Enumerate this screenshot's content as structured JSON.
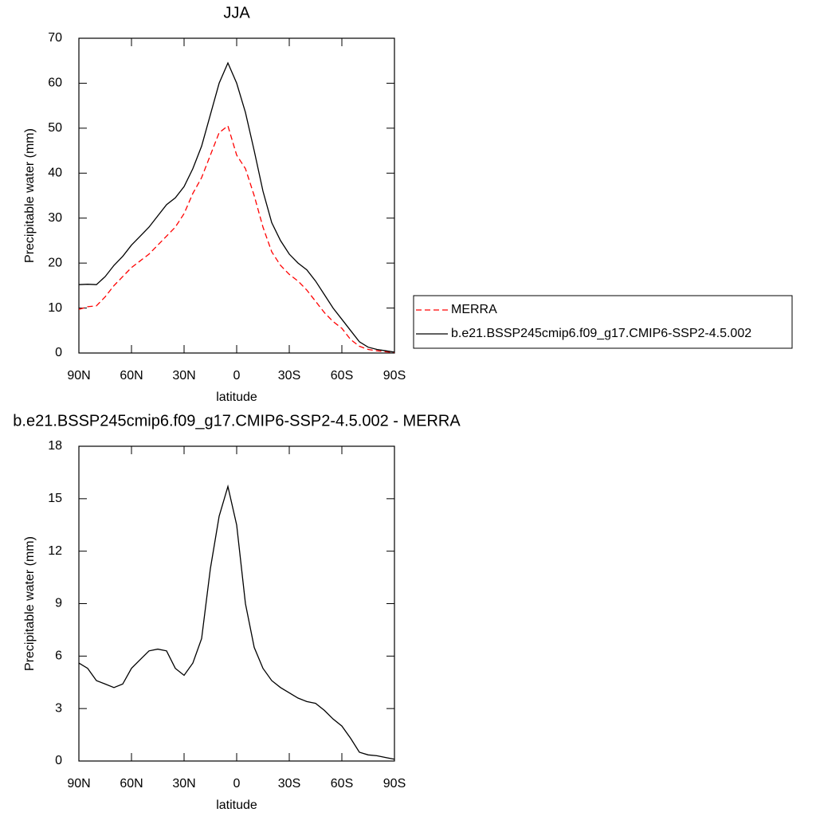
{
  "chart_data": [
    {
      "type": "line",
      "title": "JJA",
      "xlabel": "latitude",
      "ylabel": "Precipitable water (mm)",
      "x": [
        90,
        85,
        80,
        75,
        70,
        65,
        60,
        55,
        50,
        45,
        40,
        35,
        30,
        25,
        20,
        15,
        10,
        5,
        0,
        -5,
        -10,
        -15,
        -20,
        -25,
        -30,
        -35,
        -40,
        -45,
        -50,
        -55,
        -60,
        -65,
        -70,
        -75,
        -80,
        -85,
        -90
      ],
      "xlim": [
        90,
        -90
      ],
      "xticks": [
        {
          "value": 90,
          "label": "90N"
        },
        {
          "value": 60,
          "label": "60N"
        },
        {
          "value": 30,
          "label": "30N"
        },
        0,
        {
          "value": -30,
          "label": "30S"
        },
        {
          "value": -60,
          "label": "60S"
        },
        {
          "value": -90,
          "label": "90S"
        }
      ],
      "ylim": [
        0,
        70
      ],
      "yticks": [
        0,
        10,
        20,
        30,
        40,
        50,
        60,
        70
      ],
      "legend": "right",
      "series": [
        {
          "name": "MERRA",
          "color": "#ff0000",
          "line_style": "dashed",
          "values": [
            9.7,
            10.3,
            10.5,
            12.5,
            15,
            17,
            19,
            20.5,
            22,
            24,
            26,
            28,
            31,
            35.5,
            39,
            44,
            49,
            50.5,
            44,
            41,
            35,
            28,
            22.5,
            19.5,
            17.5,
            16,
            14,
            11.5,
            9,
            7,
            5.5,
            3,
            1.5,
            0.8,
            0.5,
            0.3,
            0.1
          ]
        },
        {
          "name": "b.e21.BSSP245cmip6.f09_g17.CMIP6-SSP2-4.5.002",
          "color": "#000000",
          "line_style": "solid",
          "values": [
            15.2,
            15.3,
            15.2,
            17,
            19.5,
            21.5,
            24,
            26,
            28,
            30.5,
            33,
            34.5,
            37,
            41,
            46,
            53,
            60,
            64.5,
            60,
            53.5,
            45,
            36,
            29,
            25,
            22,
            20,
            18.5,
            16,
            13,
            10,
            7.5,
            5,
            2.5,
            1.3,
            0.8,
            0.5,
            0.2
          ]
        }
      ]
    },
    {
      "type": "line",
      "title": "b.e21.BSSP245cmip6.f09_g17.CMIP6-SSP2-4.5.002 - MERRA",
      "xlabel": "latitude",
      "ylabel": "Precipitable water (mm)",
      "x": [
        90,
        85,
        80,
        75,
        70,
        65,
        60,
        55,
        50,
        45,
        40,
        35,
        30,
        25,
        20,
        15,
        10,
        5,
        0,
        -5,
        -10,
        -15,
        -20,
        -25,
        -30,
        -35,
        -40,
        -45,
        -50,
        -55,
        -60,
        -65,
        -70,
        -75,
        -80,
        -85,
        -90
      ],
      "xlim": [
        90,
        -90
      ],
      "xticks": [
        {
          "value": 90,
          "label": "90N"
        },
        {
          "value": 60,
          "label": "60N"
        },
        {
          "value": 30,
          "label": "30N"
        },
        0,
        {
          "value": -30,
          "label": "30S"
        },
        {
          "value": -60,
          "label": "60S"
        },
        {
          "value": -90,
          "label": "90S"
        }
      ],
      "ylim": [
        0,
        18
      ],
      "yticks": [
        0,
        3,
        6,
        9,
        12,
        15,
        18
      ],
      "series": [
        {
          "color": "#000000",
          "line_style": "solid",
          "values": [
            5.6,
            5.3,
            4.6,
            4.4,
            4.2,
            4.4,
            5.3,
            5.8,
            6.3,
            6.4,
            6.3,
            5.3,
            4.9,
            5.6,
            7.0,
            11,
            14,
            15.7,
            13.5,
            9,
            6.5,
            5.3,
            4.6,
            4.2,
            3.9,
            3.6,
            3.4,
            3.3,
            2.9,
            2.4,
            2.0,
            1.3,
            0.5,
            0.35,
            0.3,
            0.2,
            0.1
          ]
        }
      ]
    }
  ]
}
